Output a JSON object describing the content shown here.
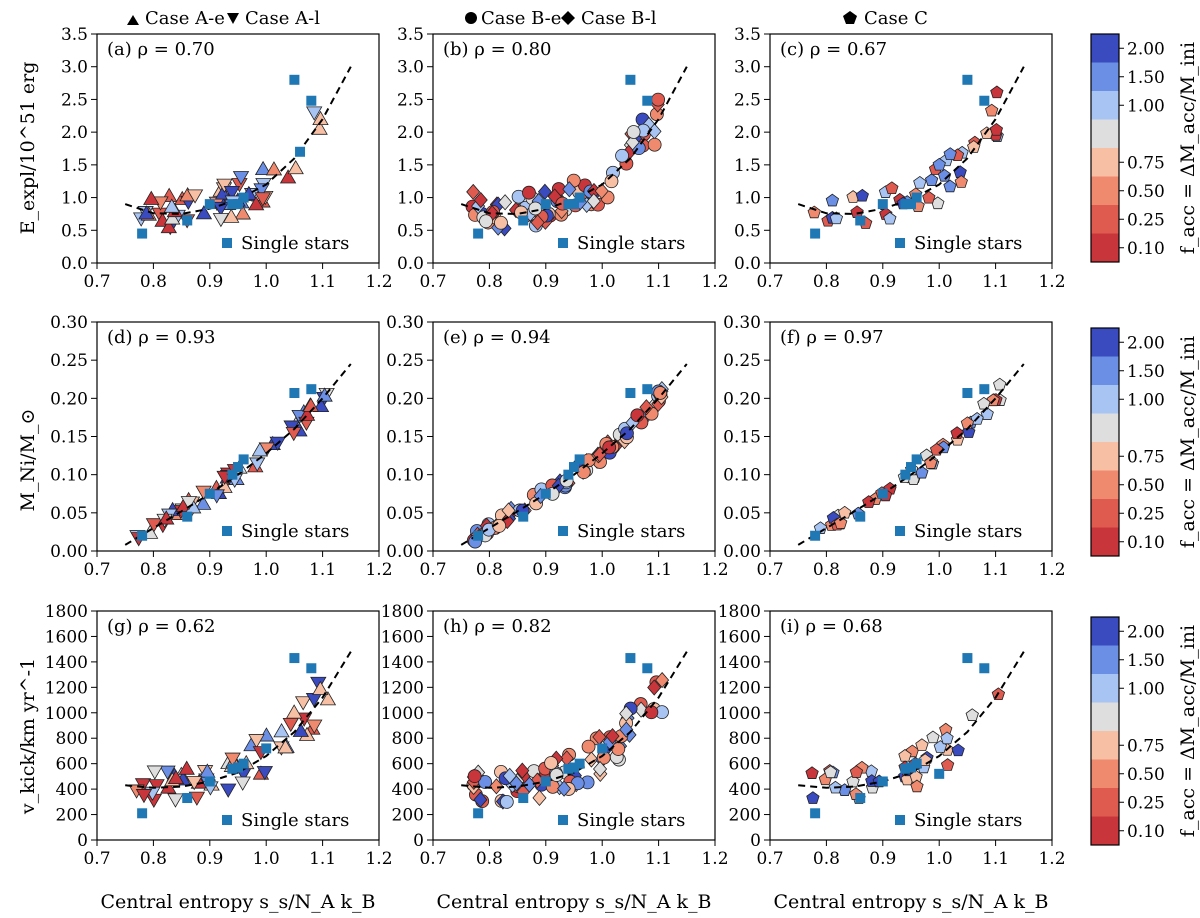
{
  "figure": {
    "legend_top": [
      {
        "marker": "triangle-up",
        "label": "Case A-e"
      },
      {
        "marker": "triangle-down",
        "label": "Case A-l"
      },
      {
        "marker": "circle",
        "label": "Case B-e"
      },
      {
        "marker": "diamond",
        "label": "Case B-l"
      },
      {
        "marker": "pentagon",
        "label": "Case C"
      }
    ],
    "xlabel": "Central entropy s_s/N_A k_B",
    "single_stars_label": "Single stars",
    "colorbar": {
      "label": "f_acc = ΔM_acc/M_ini",
      "ticks": [
        "0.10",
        "0.25",
        "0.50",
        "0.75",
        "1.00",
        "1.50",
        "2.00"
      ],
      "bin_colors": [
        "#c8353b",
        "#df5b50",
        "#ef8a6e",
        "#f7bfa4",
        "#dedede",
        "#a8c4f2",
        "#6b8fe5",
        "#3a4bbf"
      ]
    },
    "colors": {
      "single_star": "#1f77b4",
      "edge": "#222222"
    }
  },
  "chart_data": [
    {
      "panel": "(a)",
      "rho": "0.70",
      "type": "scatter",
      "ylabel": "E_expl/10^51 erg",
      "ylim": [
        0,
        3.5
      ],
      "yticks": [
        "0.0",
        "0.5",
        "1.0",
        "1.5",
        "2.0",
        "2.5",
        "3.0",
        "3.5"
      ],
      "xlim": [
        0.7,
        1.2
      ],
      "xticks": [
        "0.7",
        "0.8",
        "0.9",
        "1.0",
        "1.1",
        "1.2"
      ],
      "cases": [
        "A-e",
        "A-l"
      ],
      "single_stars": [
        [
          0.78,
          0.45
        ],
        [
          0.86,
          0.65
        ],
        [
          0.9,
          0.9
        ],
        [
          0.94,
          0.9
        ],
        [
          0.96,
          1.0
        ],
        [
          1.05,
          2.8
        ],
        [
          1.08,
          2.48
        ],
        [
          0.95,
          0.9
        ],
        [
          1.06,
          1.7
        ]
      ],
      "fit": [
        [
          0.75,
          0.9
        ],
        [
          0.8,
          0.76
        ],
        [
          0.85,
          0.75
        ],
        [
          0.9,
          0.83
        ],
        [
          0.95,
          0.97
        ],
        [
          1.0,
          1.2
        ],
        [
          1.05,
          1.6
        ],
        [
          1.1,
          2.2
        ],
        [
          1.15,
          3.0
        ]
      ]
    },
    {
      "panel": "(b)",
      "rho": "0.80",
      "type": "scatter",
      "ylabel": "",
      "ylim": [
        0,
        3.5
      ],
      "yticks": [
        "0.0",
        "0.5",
        "1.0",
        "1.5",
        "2.0",
        "2.5",
        "3.0",
        "3.5"
      ],
      "xlim": [
        0.7,
        1.2
      ],
      "xticks": [
        "0.7",
        "0.8",
        "0.9",
        "1.0",
        "1.1",
        "1.2"
      ],
      "cases": [
        "B-e",
        "B-l"
      ],
      "single_stars": [
        [
          0.78,
          0.45
        ],
        [
          0.86,
          0.65
        ],
        [
          0.9,
          0.9
        ],
        [
          0.94,
          0.9
        ],
        [
          0.96,
          1.0
        ],
        [
          1.05,
          2.8
        ],
        [
          1.08,
          2.48
        ],
        [
          0.95,
          0.9
        ]
      ],
      "fit": [
        [
          0.75,
          0.9
        ],
        [
          0.8,
          0.76
        ],
        [
          0.85,
          0.75
        ],
        [
          0.9,
          0.83
        ],
        [
          0.95,
          0.97
        ],
        [
          1.0,
          1.2
        ],
        [
          1.05,
          1.6
        ],
        [
          1.1,
          2.2
        ],
        [
          1.15,
          3.0
        ]
      ]
    },
    {
      "panel": "(c)",
      "rho": "0.67",
      "type": "scatter",
      "ylabel": "",
      "ylim": [
        0,
        3.5
      ],
      "yticks": [
        "0.0",
        "0.5",
        "1.0",
        "1.5",
        "2.0",
        "2.5",
        "3.0",
        "3.5"
      ],
      "xlim": [
        0.7,
        1.2
      ],
      "xticks": [
        "0.7",
        "0.8",
        "0.9",
        "1.0",
        "1.1",
        "1.2"
      ],
      "cases": [
        "C"
      ],
      "single_stars": [
        [
          0.78,
          0.45
        ],
        [
          0.86,
          0.65
        ],
        [
          0.9,
          0.9
        ],
        [
          0.94,
          0.9
        ],
        [
          0.96,
          1.0
        ],
        [
          1.05,
          2.8
        ],
        [
          1.08,
          2.48
        ],
        [
          0.95,
          0.9
        ]
      ],
      "fit": [
        [
          0.75,
          0.9
        ],
        [
          0.8,
          0.76
        ],
        [
          0.85,
          0.75
        ],
        [
          0.9,
          0.83
        ],
        [
          0.95,
          0.97
        ],
        [
          1.0,
          1.2
        ],
        [
          1.05,
          1.6
        ],
        [
          1.1,
          2.2
        ],
        [
          1.15,
          3.0
        ]
      ]
    },
    {
      "panel": "(d)",
      "rho": "0.93",
      "type": "scatter",
      "ylabel": "M_Ni/M_⊙",
      "ylim": [
        0,
        0.3
      ],
      "yticks": [
        "0.00",
        "0.05",
        "0.10",
        "0.15",
        "0.20",
        "0.25",
        "0.30"
      ],
      "xlim": [
        0.7,
        1.2
      ],
      "xticks": [
        "0.7",
        "0.8",
        "0.9",
        "1.0",
        "1.1",
        "1.2"
      ],
      "cases": [
        "A-e",
        "A-l"
      ],
      "single_stars": [
        [
          0.78,
          0.02
        ],
        [
          0.86,
          0.045
        ],
        [
          0.9,
          0.075
        ],
        [
          0.94,
          0.1
        ],
        [
          0.96,
          0.12
        ],
        [
          1.05,
          0.207
        ],
        [
          1.08,
          0.212
        ],
        [
          0.95,
          0.11
        ]
      ],
      "fit": [
        [
          0.75,
          0.008
        ],
        [
          0.8,
          0.03
        ],
        [
          0.85,
          0.052
        ],
        [
          0.9,
          0.075
        ],
        [
          0.95,
          0.1
        ],
        [
          1.0,
          0.128
        ],
        [
          1.05,
          0.16
        ],
        [
          1.1,
          0.2
        ],
        [
          1.15,
          0.245
        ]
      ]
    },
    {
      "panel": "(e)",
      "rho": "0.94",
      "type": "scatter",
      "ylabel": "",
      "ylim": [
        0,
        0.3
      ],
      "yticks": [
        "0.00",
        "0.05",
        "0.10",
        "0.15",
        "0.20",
        "0.25",
        "0.30"
      ],
      "xlim": [
        0.7,
        1.2
      ],
      "xticks": [
        "0.7",
        "0.8",
        "0.9",
        "1.0",
        "1.1",
        "1.2"
      ],
      "cases": [
        "B-e",
        "B-l"
      ],
      "single_stars": [
        [
          0.78,
          0.02
        ],
        [
          0.86,
          0.045
        ],
        [
          0.9,
          0.075
        ],
        [
          0.94,
          0.1
        ],
        [
          0.96,
          0.12
        ],
        [
          1.05,
          0.207
        ],
        [
          1.08,
          0.212
        ],
        [
          0.95,
          0.11
        ]
      ],
      "fit": [
        [
          0.75,
          0.008
        ],
        [
          0.8,
          0.03
        ],
        [
          0.85,
          0.052
        ],
        [
          0.9,
          0.075
        ],
        [
          0.95,
          0.1
        ],
        [
          1.0,
          0.128
        ],
        [
          1.05,
          0.16
        ],
        [
          1.1,
          0.2
        ],
        [
          1.15,
          0.245
        ]
      ]
    },
    {
      "panel": "(f)",
      "rho": "0.97",
      "type": "scatter",
      "ylabel": "",
      "ylim": [
        0,
        0.3
      ],
      "yticks": [
        "0.00",
        "0.05",
        "0.10",
        "0.15",
        "0.20",
        "0.25",
        "0.30"
      ],
      "xlim": [
        0.7,
        1.2
      ],
      "xticks": [
        "0.7",
        "0.8",
        "0.9",
        "1.0",
        "1.1",
        "1.2"
      ],
      "cases": [
        "C"
      ],
      "single_stars": [
        [
          0.78,
          0.02
        ],
        [
          0.86,
          0.045
        ],
        [
          0.9,
          0.075
        ],
        [
          0.94,
          0.1
        ],
        [
          0.96,
          0.12
        ],
        [
          1.05,
          0.207
        ],
        [
          1.08,
          0.212
        ],
        [
          0.95,
          0.11
        ]
      ],
      "fit": [
        [
          0.75,
          0.008
        ],
        [
          0.8,
          0.03
        ],
        [
          0.85,
          0.052
        ],
        [
          0.9,
          0.075
        ],
        [
          0.95,
          0.1
        ],
        [
          1.0,
          0.128
        ],
        [
          1.05,
          0.16
        ],
        [
          1.1,
          0.2
        ],
        [
          1.15,
          0.245
        ]
      ]
    },
    {
      "panel": "(g)",
      "rho": "0.62",
      "type": "scatter",
      "ylabel": "v_kick/km yr^-1",
      "ylim": [
        0,
        1800
      ],
      "yticks": [
        "0",
        "200",
        "400",
        "600",
        "800",
        "1000",
        "1200",
        "1400",
        "1600",
        "1800"
      ],
      "xlim": [
        0.7,
        1.2
      ],
      "xticks": [
        "0.7",
        "0.8",
        "0.9",
        "1.0",
        "1.1",
        "1.2"
      ],
      "cases": [
        "A-e",
        "A-l"
      ],
      "single_stars": [
        [
          0.78,
          210
        ],
        [
          0.86,
          330
        ],
        [
          0.9,
          460
        ],
        [
          0.94,
          560
        ],
        [
          0.96,
          600
        ],
        [
          1.05,
          1430
        ],
        [
          1.08,
          1350
        ],
        [
          0.95,
          570
        ],
        [
          1.0,
          720
        ]
      ],
      "fit": [
        [
          0.75,
          430
        ],
        [
          0.8,
          410
        ],
        [
          0.85,
          420
        ],
        [
          0.9,
          460
        ],
        [
          0.95,
          530
        ],
        [
          1.0,
          660
        ],
        [
          1.05,
          850
        ],
        [
          1.1,
          1120
        ],
        [
          1.15,
          1480
        ]
      ]
    },
    {
      "panel": "(h)",
      "rho": "0.82",
      "type": "scatter",
      "ylabel": "",
      "ylim": [
        0,
        1800
      ],
      "yticks": [
        "0",
        "200",
        "400",
        "600",
        "800",
        "1000",
        "1200",
        "1400",
        "1600",
        "1800"
      ],
      "xlim": [
        0.7,
        1.2
      ],
      "xticks": [
        "0.7",
        "0.8",
        "0.9",
        "1.0",
        "1.1",
        "1.2"
      ],
      "cases": [
        "B-e",
        "B-l"
      ],
      "single_stars": [
        [
          0.78,
          210
        ],
        [
          0.86,
          330
        ],
        [
          0.9,
          460
        ],
        [
          0.94,
          560
        ],
        [
          0.96,
          600
        ],
        [
          1.05,
          1430
        ],
        [
          1.08,
          1350
        ],
        [
          0.95,
          570
        ],
        [
          1.0,
          720
        ]
      ],
      "fit": [
        [
          0.75,
          430
        ],
        [
          0.8,
          410
        ],
        [
          0.85,
          420
        ],
        [
          0.9,
          460
        ],
        [
          0.95,
          530
        ],
        [
          1.0,
          660
        ],
        [
          1.05,
          850
        ],
        [
          1.1,
          1120
        ],
        [
          1.15,
          1480
        ]
      ]
    },
    {
      "panel": "(i)",
      "rho": "0.68",
      "type": "scatter",
      "ylabel": "",
      "ylim": [
        0,
        1800
      ],
      "yticks": [
        "0",
        "200",
        "400",
        "600",
        "800",
        "1000",
        "1200",
        "1400",
        "1600",
        "1800"
      ],
      "xlim": [
        0.7,
        1.2
      ],
      "xticks": [
        "0.7",
        "0.8",
        "0.9",
        "1.0",
        "1.1",
        "1.2"
      ],
      "cases": [
        "C"
      ],
      "single_stars": [
        [
          0.78,
          210
        ],
        [
          0.86,
          330
        ],
        [
          0.9,
          460
        ],
        [
          0.94,
          560
        ],
        [
          0.96,
          600
        ],
        [
          1.05,
          1430
        ],
        [
          1.08,
          1350
        ],
        [
          0.95,
          570
        ],
        [
          1.0,
          520
        ]
      ],
      "fit": [
        [
          0.75,
          430
        ],
        [
          0.8,
          410
        ],
        [
          0.85,
          420
        ],
        [
          0.9,
          460
        ],
        [
          0.95,
          530
        ],
        [
          1.0,
          660
        ],
        [
          1.05,
          850
        ],
        [
          1.1,
          1120
        ],
        [
          1.15,
          1480
        ]
      ]
    }
  ]
}
